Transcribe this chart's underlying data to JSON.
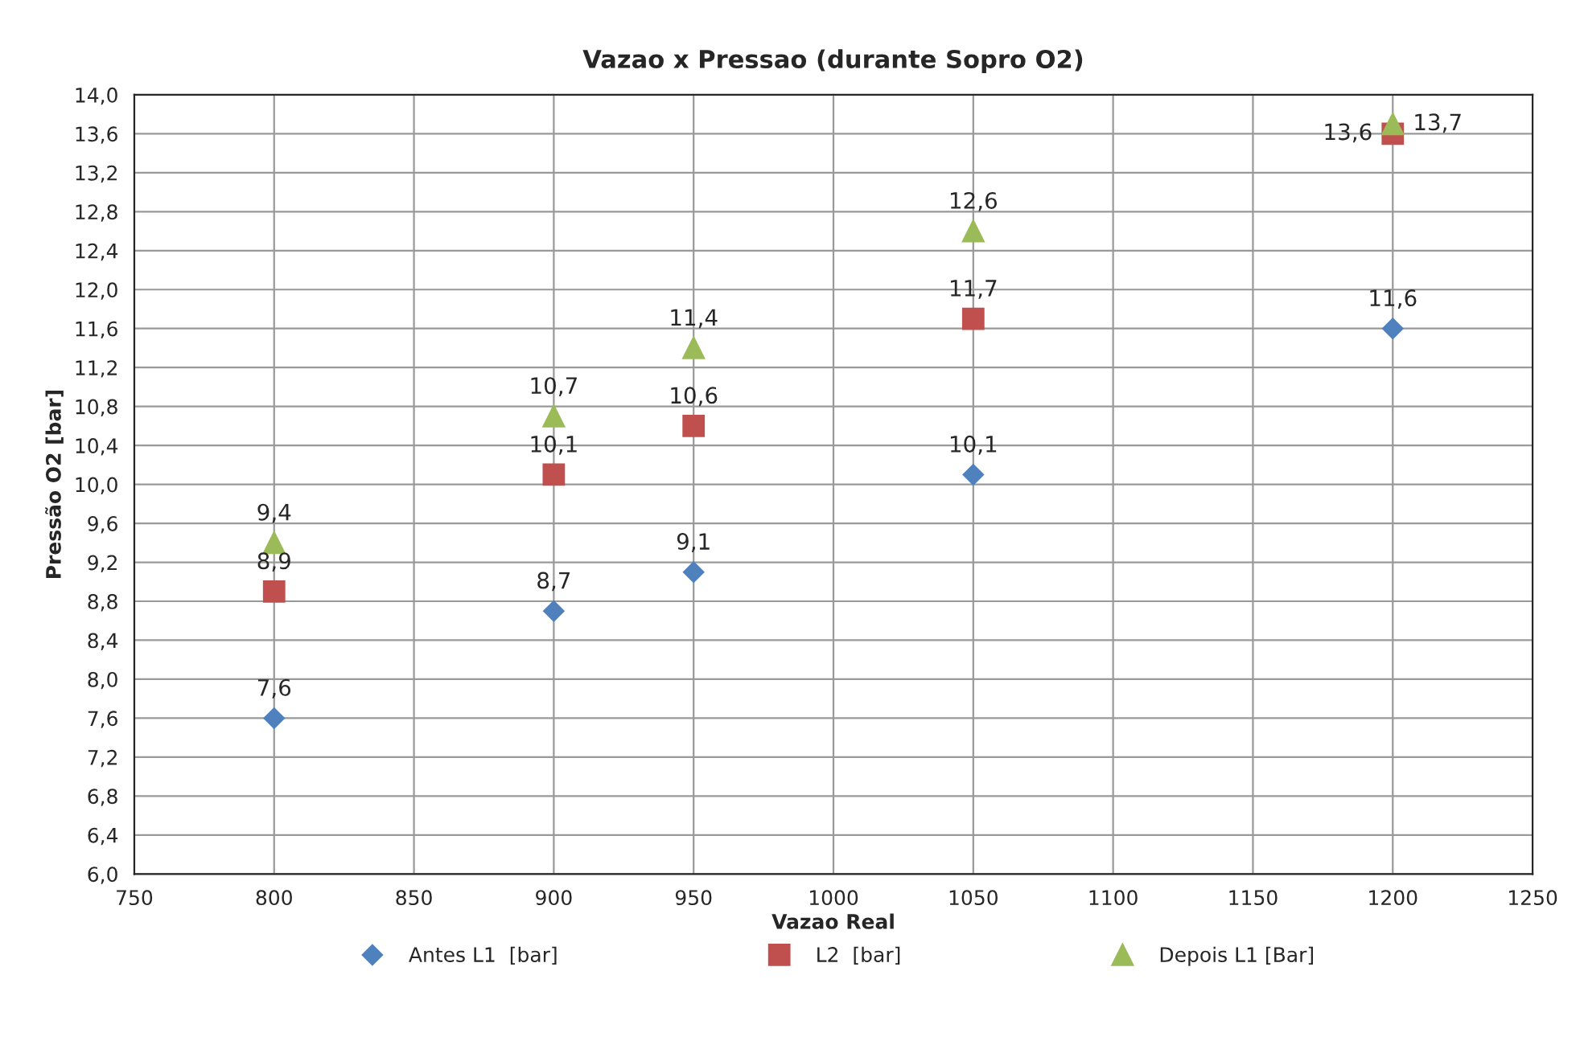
{
  "chart_data": {
    "type": "scatter",
    "title": "Vazao x Pressao (durante Sopro O2)",
    "xlabel": "Vazao Real",
    "ylabel": "Pressão O2 [bar]",
    "x": [
      800,
      900,
      950,
      1050,
      1200
    ],
    "series": [
      {
        "name": "Antes L1  [bar]",
        "color": "#4f81bd",
        "marker": "diamond",
        "values": [
          7.6,
          8.7,
          9.1,
          10.1,
          11.6
        ],
        "value_labels": [
          "7,6",
          "8,7",
          "9,1",
          "10,1",
          "11,6"
        ]
      },
      {
        "name": "L2  [bar]",
        "color": "#c0504d",
        "marker": "square",
        "values": [
          8.9,
          10.1,
          10.6,
          11.7,
          13.6
        ],
        "value_labels": [
          "8,9",
          "10,1",
          "10,6",
          "11,7",
          "13,6"
        ]
      },
      {
        "name": "Depois L1 [Bar]",
        "color": "#9bbb59",
        "marker": "triangle",
        "values": [
          9.4,
          10.7,
          11.4,
          12.6,
          13.7
        ],
        "value_labels": [
          "9,4",
          "10,7",
          "11,4",
          "12,6",
          "13,7"
        ]
      }
    ],
    "xlim": [
      750,
      1250
    ],
    "xticks": [
      750,
      800,
      850,
      900,
      950,
      1000,
      1050,
      1100,
      1150,
      1200,
      1250
    ],
    "ylim": [
      6.0,
      14.0
    ],
    "yticks": [
      {
        "value": 6.0,
        "label": "6,0"
      },
      {
        "value": 6.4,
        "label": "6,4"
      },
      {
        "value": 6.8,
        "label": "6,8"
      },
      {
        "value": 7.2,
        "label": "7,2"
      },
      {
        "value": 7.6,
        "label": "7,6"
      },
      {
        "value": 8.0,
        "label": "8,0"
      },
      {
        "value": 8.4,
        "label": "8,4"
      },
      {
        "value": 8.8,
        "label": "8,8"
      },
      {
        "value": 9.2,
        "label": "9,2"
      },
      {
        "value": 9.6,
        "label": "9,6"
      },
      {
        "value": 10.0,
        "label": "10,0"
      },
      {
        "value": 10.4,
        "label": "10,4"
      },
      {
        "value": 10.8,
        "label": "10,8"
      },
      {
        "value": 11.2,
        "label": "11,2"
      },
      {
        "value": 11.6,
        "label": "11,6"
      },
      {
        "value": 12.0,
        "label": "12,0"
      },
      {
        "value": 12.4,
        "label": "12,4"
      },
      {
        "value": 12.8,
        "label": "12,8"
      },
      {
        "value": 13.2,
        "label": "13,2"
      },
      {
        "value": 13.6,
        "label": "13,6"
      },
      {
        "value": 14.0,
        "label": "14,0"
      }
    ],
    "grid": true,
    "legend": "bottom"
  }
}
